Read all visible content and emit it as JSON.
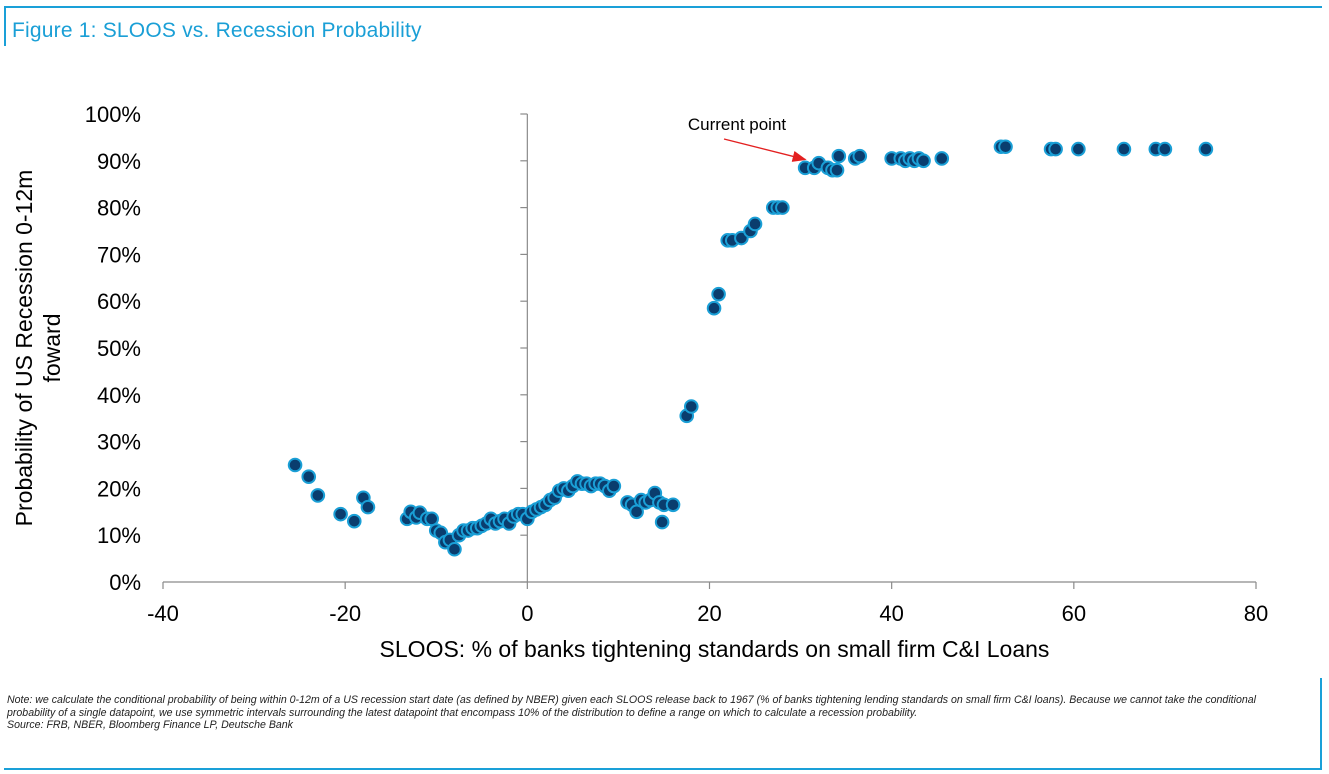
{
  "figure": {
    "title": "Figure 1: SLOOS vs. Recession Probability",
    "note": "Note: we calculate the conditional probability of being within 0-12m of a US recession start date (as defined by NBER) given each SLOOS release back to 1967 (% of banks tightening lending standards on small firm C&I loans). Because we cannot take the conditional probability of a single datapoint, we use symmetric intervals surrounding the latest datapoint that encompass 10% of the distribution to define a range on which to calculate a recession probability.",
    "source": "Source: FRB, NBER, Bloomberg Finance LP, Deutsche Bank"
  },
  "colors": {
    "accent": "#1aa0d8",
    "marker_fill": "#0a3d6e",
    "marker_edge": "#1a9fd6",
    "annotation_arrow": "#e32020"
  },
  "chart_data": {
    "type": "scatter",
    "xlabel": "SLOOS: % of banks tightening standards on small firm C&I Loans",
    "ylabel_lines": [
      "Probability of US Recession 0-12m",
      "foward"
    ],
    "xlim": [
      -40,
      80
    ],
    "ylim": [
      0,
      100
    ],
    "x_ticks": [
      -40,
      -20,
      0,
      20,
      40,
      60,
      80
    ],
    "x_tick_labels": [
      "-40",
      "-20",
      "0",
      "20",
      "40",
      "60",
      "80"
    ],
    "y_ticks": [
      0,
      10,
      20,
      30,
      40,
      50,
      60,
      70,
      80,
      90,
      100
    ],
    "y_tick_labels": [
      "0%",
      "10%",
      "20%",
      "30%",
      "40%",
      "50%",
      "60%",
      "70%",
      "80%",
      "90%",
      "100%"
    ],
    "x_axis_at_y": 0,
    "y_axis_at_x": 0,
    "grid": false,
    "annotation": {
      "text": "Current point",
      "x": 31.5,
      "y": 89
    },
    "points": [
      [
        -25.5,
        25
      ],
      [
        -24,
        22.5
      ],
      [
        -23,
        18.5
      ],
      [
        -20.5,
        14.5
      ],
      [
        -19,
        13
      ],
      [
        -18,
        18
      ],
      [
        -17.5,
        16
      ],
      [
        -13.2,
        13.5
      ],
      [
        -12.8,
        15
      ],
      [
        -12.2,
        13.8
      ],
      [
        -11.8,
        14.8
      ],
      [
        -11,
        13.5
      ],
      [
        -10.5,
        13.5
      ],
      [
        -10,
        11
      ],
      [
        -9.5,
        10.5
      ],
      [
        -9,
        8.5
      ],
      [
        -8.5,
        9
      ],
      [
        -8,
        7
      ],
      [
        -7.5,
        10
      ],
      [
        -7,
        11
      ],
      [
        -6.5,
        11
      ],
      [
        -6,
        11.5
      ],
      [
        -5.5,
        11.5
      ],
      [
        -5,
        12
      ],
      [
        -4.5,
        12.5
      ],
      [
        -4,
        13.5
      ],
      [
        -3.5,
        12.5
      ],
      [
        -3,
        13
      ],
      [
        -2.5,
        13.5
      ],
      [
        -2,
        12.5
      ],
      [
        -1.5,
        14
      ],
      [
        -1,
        14.5
      ],
      [
        -0.5,
        14.5
      ],
      [
        0,
        13.5
      ],
      [
        0.5,
        15
      ],
      [
        1,
        15.5
      ],
      [
        1.5,
        16
      ],
      [
        2,
        16.5
      ],
      [
        2.5,
        17.5
      ],
      [
        3,
        18
      ],
      [
        3.5,
        19.5
      ],
      [
        4,
        20
      ],
      [
        4.5,
        19.5
      ],
      [
        5,
        20.5
      ],
      [
        5.5,
        21.5
      ],
      [
        6,
        21
      ],
      [
        6.5,
        21
      ],
      [
        7,
        20.5
      ],
      [
        7.5,
        21
      ],
      [
        8,
        21
      ],
      [
        8.5,
        20.5
      ],
      [
        9,
        19.5
      ],
      [
        9.5,
        20.5
      ],
      [
        11,
        17
      ],
      [
        11.5,
        16.5
      ],
      [
        12,
        15
      ],
      [
        12.5,
        17.5
      ],
      [
        13,
        17
      ],
      [
        13.5,
        17.5
      ],
      [
        14,
        19
      ],
      [
        14.5,
        17
      ],
      [
        14.8,
        12.8
      ],
      [
        15,
        16.5
      ],
      [
        16,
        16.5
      ],
      [
        17.5,
        35.5
      ],
      [
        18,
        37.5
      ],
      [
        20.5,
        58.5
      ],
      [
        21,
        61.5
      ],
      [
        22,
        73
      ],
      [
        22.5,
        73
      ],
      [
        23.5,
        73.5
      ],
      [
        24.5,
        75
      ],
      [
        25,
        76.5
      ],
      [
        27,
        80
      ],
      [
        27.5,
        80
      ],
      [
        28,
        80
      ],
      [
        30.5,
        88.5
      ],
      [
        31.5,
        88.5
      ],
      [
        32,
        89.5
      ],
      [
        33,
        88.5
      ],
      [
        33.5,
        88
      ],
      [
        34,
        88
      ],
      [
        34.2,
        91
      ],
      [
        36,
        90.5
      ],
      [
        36.5,
        91
      ],
      [
        40,
        90.5
      ],
      [
        41,
        90.5
      ],
      [
        41.5,
        90
      ],
      [
        42,
        90.5
      ],
      [
        42.5,
        90
      ],
      [
        43,
        90.5
      ],
      [
        43.5,
        90
      ],
      [
        45.5,
        90.5
      ],
      [
        52,
        93
      ],
      [
        52.5,
        93
      ],
      [
        57.5,
        92.5
      ],
      [
        58,
        92.5
      ],
      [
        60.5,
        92.5
      ],
      [
        65.5,
        92.5
      ],
      [
        69,
        92.5
      ],
      [
        70,
        92.5
      ],
      [
        74.5,
        92.5
      ]
    ]
  }
}
